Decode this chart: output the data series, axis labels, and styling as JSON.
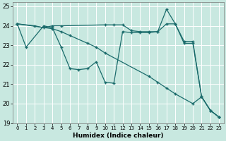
{
  "xlabel": "Humidex (Indice chaleur)",
  "xlim": [
    -0.5,
    23.5
  ],
  "ylim": [
    19,
    25.2
  ],
  "yticks": [
    19,
    20,
    21,
    22,
    23,
    24,
    25
  ],
  "xticks": [
    0,
    1,
    2,
    3,
    4,
    5,
    6,
    7,
    8,
    9,
    10,
    11,
    12,
    13,
    14,
    15,
    16,
    17,
    18,
    19,
    20,
    21,
    22,
    23
  ],
  "bg_color": "#c8e8e0",
  "grid_color": "#ffffff",
  "line_color": "#1a6b6b",
  "lines": [
    {
      "x": [
        0,
        1,
        3,
        4,
        5,
        6,
        7,
        8,
        9,
        10,
        11,
        12,
        13,
        14,
        15,
        16,
        17,
        18,
        19,
        20,
        21,
        22,
        23
      ],
      "y": [
        24.1,
        22.9,
        24.0,
        23.9,
        22.9,
        21.8,
        21.75,
        21.8,
        22.15,
        21.1,
        21.05,
        23.7,
        23.65,
        23.65,
        23.65,
        23.7,
        24.85,
        24.1,
        23.1,
        23.1,
        20.35,
        19.65,
        19.3
      ]
    },
    {
      "x": [
        0,
        2,
        3,
        4,
        5,
        10,
        11,
        12,
        13,
        14,
        15,
        16,
        17,
        18,
        19,
        20,
        21,
        22,
        23
      ],
      "y": [
        24.1,
        24.0,
        23.9,
        24.0,
        24.0,
        24.05,
        24.05,
        24.05,
        23.75,
        23.7,
        23.7,
        23.7,
        24.1,
        24.1,
        23.2,
        23.2,
        20.35,
        19.65,
        19.3
      ]
    },
    {
      "x": [
        0,
        4,
        5,
        6,
        8,
        9,
        10,
        15,
        16,
        17,
        18,
        20,
        21,
        22,
        23
      ],
      "y": [
        24.1,
        23.85,
        23.7,
        23.5,
        23.1,
        22.9,
        22.6,
        21.4,
        21.1,
        20.8,
        20.5,
        20.0,
        20.35,
        19.65,
        19.3
      ]
    }
  ]
}
